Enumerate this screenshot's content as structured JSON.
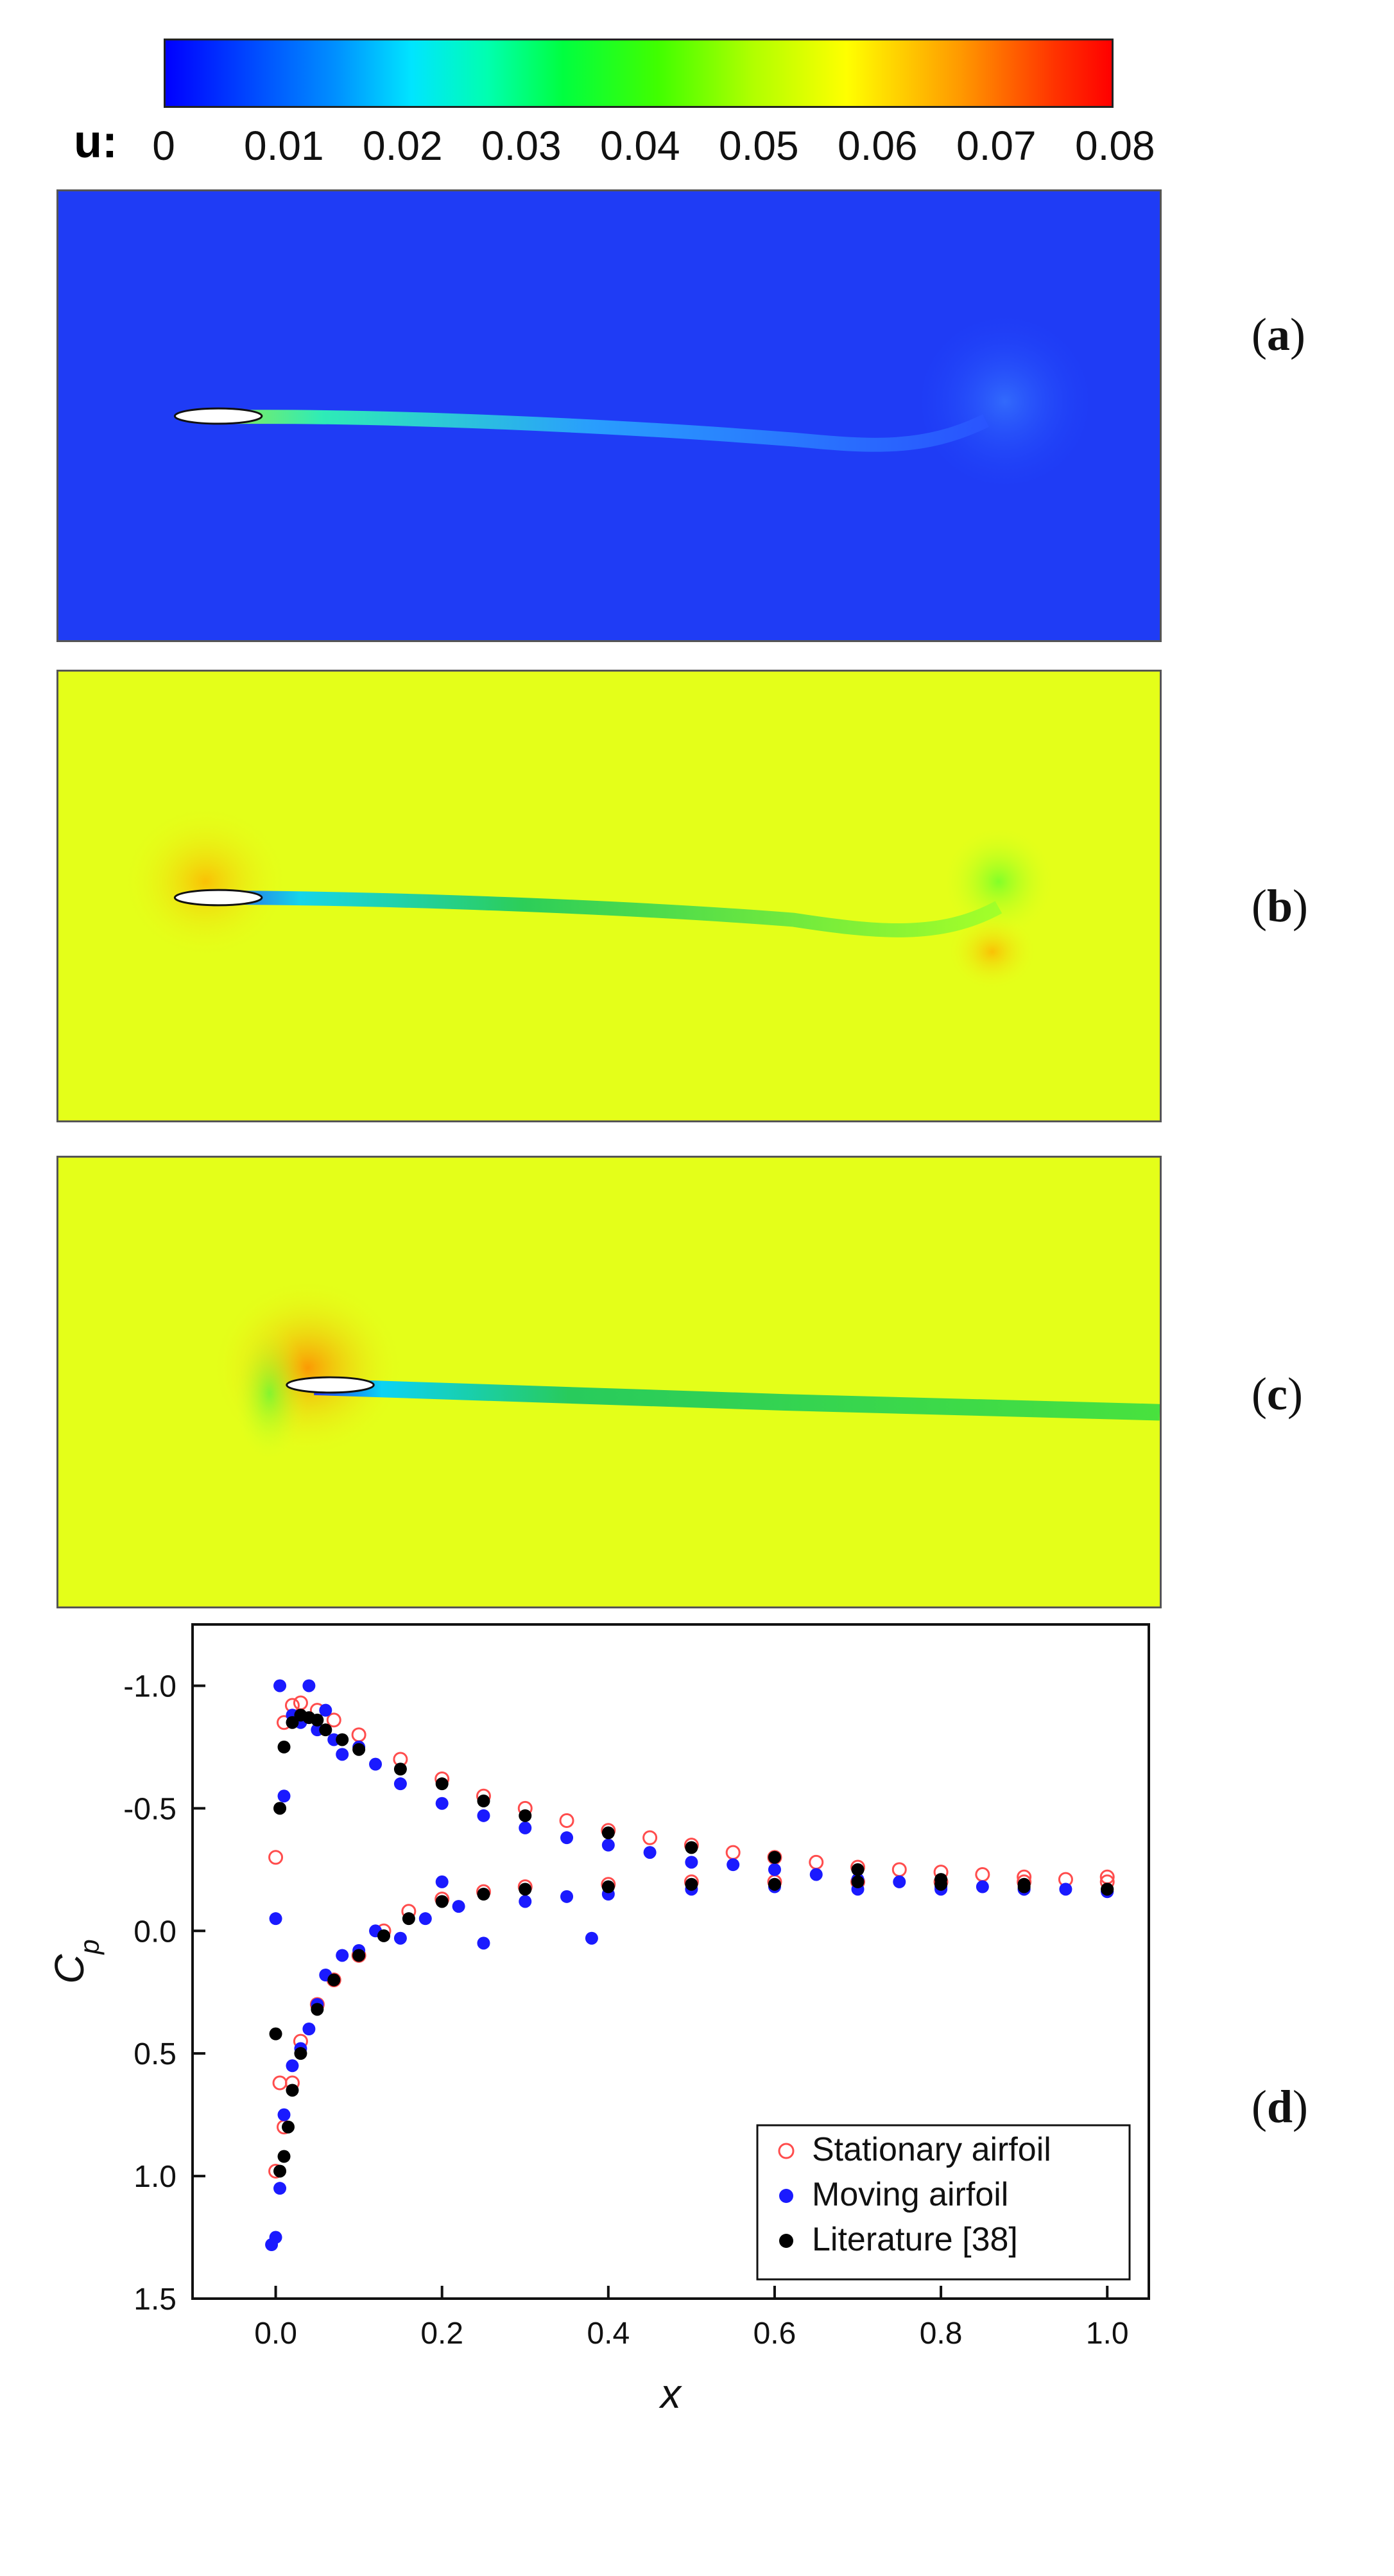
{
  "colorbar": {
    "label": "u:",
    "ticks": [
      "0",
      "0.01",
      "0.02",
      "0.03",
      "0.04",
      "0.05",
      "0.06",
      "0.07",
      "0.08"
    ]
  },
  "panels": [
    {
      "id": "a",
      "label": "a"
    },
    {
      "id": "b",
      "label": "b"
    },
    {
      "id": "c",
      "label": "c"
    },
    {
      "id": "d",
      "label": "d"
    }
  ],
  "chart_data": {
    "type": "scatter",
    "title": "",
    "xlabel": "x",
    "ylabel": "C_p",
    "xlim": [
      -0.1,
      1.05
    ],
    "ylim": [
      -1.25,
      1.5
    ],
    "y_inverted": true,
    "xticks": [
      "0.0",
      "0.2",
      "0.4",
      "0.6",
      "0.8",
      "1.0"
    ],
    "yticks": [
      "-1.0",
      "-0.5",
      "0.0",
      "0.5",
      "1.0",
      "1.5"
    ],
    "xtick_values": [
      0.0,
      0.2,
      0.4,
      0.6,
      0.8,
      1.0
    ],
    "ytick_values": [
      -1.0,
      -0.5,
      0.0,
      0.5,
      1.0,
      1.5
    ],
    "legend_position": "bottom-right",
    "series": [
      {
        "name": "Stationary airfoil",
        "color": "#ff4d4d",
        "marker": "open-circle",
        "upper": {
          "x": [
            0.0,
            0.01,
            0.02,
            0.03,
            0.05,
            0.07,
            0.1,
            0.15,
            0.2,
            0.25,
            0.3,
            0.35,
            0.4,
            0.45,
            0.5,
            0.55,
            0.6,
            0.65,
            0.7,
            0.75,
            0.8,
            0.85,
            0.9,
            0.95,
            1.0
          ],
          "y": [
            -0.3,
            -0.85,
            -0.92,
            -0.93,
            -0.9,
            -0.86,
            -0.8,
            -0.7,
            -0.62,
            -0.55,
            -0.5,
            -0.45,
            -0.41,
            -0.38,
            -0.35,
            -0.32,
            -0.3,
            -0.28,
            -0.26,
            -0.25,
            -0.24,
            -0.23,
            -0.22,
            -0.21,
            -0.22
          ]
        },
        "lower": {
          "x": [
            0.0,
            0.005,
            0.01,
            0.02,
            0.03,
            0.05,
            0.07,
            0.1,
            0.13,
            0.16,
            0.2,
            0.25,
            0.3,
            0.4,
            0.5,
            0.6,
            0.7,
            0.8,
            0.9,
            1.0
          ],
          "y": [
            0.98,
            0.62,
            0.8,
            0.62,
            0.45,
            0.3,
            0.2,
            0.1,
            0.0,
            -0.08,
            -0.13,
            -0.16,
            -0.18,
            -0.19,
            -0.2,
            -0.2,
            -0.2,
            -0.2,
            -0.2,
            -0.2
          ]
        }
      },
      {
        "name": "Moving airfoil",
        "color": "#1a1aff",
        "marker": "filled-circle",
        "upper": {
          "x": [
            0.0,
            0.005,
            0.01,
            0.02,
            0.03,
            0.04,
            0.05,
            0.06,
            0.07,
            0.08,
            0.1,
            0.12,
            0.15,
            0.2,
            0.25,
            0.3,
            0.35,
            0.4,
            0.45,
            0.5,
            0.55,
            0.6,
            0.65,
            0.7,
            0.75,
            0.8,
            0.85,
            0.9,
            0.95,
            1.0
          ],
          "y": [
            -0.05,
            -1.0,
            -0.55,
            -0.88,
            -0.85,
            -1.0,
            -0.82,
            -0.9,
            -0.78,
            -0.72,
            -0.75,
            -0.68,
            -0.6,
            -0.52,
            -0.47,
            -0.42,
            -0.38,
            -0.35,
            -0.32,
            -0.28,
            -0.27,
            -0.25,
            -0.23,
            -0.21,
            -0.2,
            -0.18,
            -0.18,
            -0.17,
            -0.17,
            -0.16
          ]
        },
        "lower": {
          "x": [
            -0.005,
            0.0,
            0.005,
            0.01,
            0.02,
            0.03,
            0.04,
            0.05,
            0.06,
            0.08,
            0.1,
            0.12,
            0.15,
            0.18,
            0.2,
            0.22,
            0.25,
            0.3,
            0.35,
            0.38,
            0.4,
            0.5,
            0.6,
            0.7,
            0.8,
            0.9,
            1.0
          ],
          "y": [
            1.28,
            1.25,
            1.05,
            0.75,
            0.55,
            0.48,
            0.4,
            0.3,
            0.18,
            0.1,
            0.08,
            0.0,
            0.03,
            -0.05,
            -0.2,
            -0.1,
            0.05,
            -0.12,
            -0.14,
            0.03,
            -0.15,
            -0.17,
            -0.18,
            -0.17,
            -0.17,
            -0.17,
            -0.16
          ]
        }
      },
      {
        "name": "Literature [38]",
        "color": "#000000",
        "marker": "filled-circle",
        "upper": {
          "x": [
            0.005,
            0.01,
            0.02,
            0.03,
            0.04,
            0.05,
            0.06,
            0.08,
            0.1,
            0.15,
            0.2,
            0.25,
            0.3,
            0.4,
            0.5,
            0.6,
            0.7,
            0.8,
            0.9,
            1.0
          ],
          "y": [
            -0.5,
            -0.75,
            -0.85,
            -0.88,
            -0.87,
            -0.86,
            -0.82,
            -0.78,
            -0.74,
            -0.66,
            -0.6,
            -0.53,
            -0.47,
            -0.4,
            -0.34,
            -0.3,
            -0.25,
            -0.21,
            -0.19,
            -0.17
          ]
        },
        "lower": {
          "x": [
            0.0,
            0.005,
            0.01,
            0.015,
            0.02,
            0.03,
            0.05,
            0.07,
            0.1,
            0.13,
            0.16,
            0.2,
            0.25,
            0.3,
            0.4,
            0.5,
            0.6,
            0.7,
            0.8,
            0.9,
            1.0
          ],
          "y": [
            0.42,
            0.98,
            0.92,
            0.8,
            0.65,
            0.5,
            0.32,
            0.2,
            0.1,
            0.02,
            -0.05,
            -0.12,
            -0.15,
            -0.17,
            -0.18,
            -0.19,
            -0.19,
            -0.2,
            -0.19,
            -0.18,
            -0.17
          ]
        }
      }
    ]
  }
}
